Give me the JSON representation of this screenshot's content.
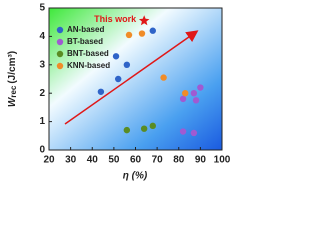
{
  "chart_data": {
    "type": "scatter",
    "x_label": "η (%)",
    "y_label": {
      "symbol": "W",
      "subscript": "rec",
      "unit": "(J/cm³)"
    },
    "xlim": [
      20,
      100
    ],
    "xticks": [
      20,
      30,
      40,
      50,
      60,
      70,
      80,
      90,
      100
    ],
    "ylim": [
      0,
      5
    ],
    "yticks": [
      0,
      1,
      2,
      3,
      4,
      5
    ],
    "series": [
      {
        "name": "AN-based",
        "color": "#2f64c8",
        "x": [
          44,
          51,
          52,
          56,
          68
        ],
        "values": [
          2.05,
          3.3,
          2.5,
          3.0,
          4.2
        ]
      },
      {
        "name": "BT-based",
        "color": "#a05ad2",
        "x": [
          82,
          87,
          88,
          90,
          82,
          87
        ],
        "values": [
          1.8,
          2.0,
          1.75,
          2.2,
          0.65,
          0.6
        ]
      },
      {
        "name": "BNT-based",
        "color": "#5a8c23",
        "x": [
          56,
          64,
          68
        ],
        "values": [
          0.7,
          0.75,
          0.85
        ]
      },
      {
        "name": "KNN-based",
        "color": "#f08c28",
        "x": [
          57,
          63,
          73,
          83
        ],
        "values": [
          4.05,
          4.1,
          2.55,
          2.0
        ]
      }
    ],
    "annotation": {
      "text": "This work",
      "x": 64,
      "y": 4.55,
      "color": "#e01818"
    }
  }
}
